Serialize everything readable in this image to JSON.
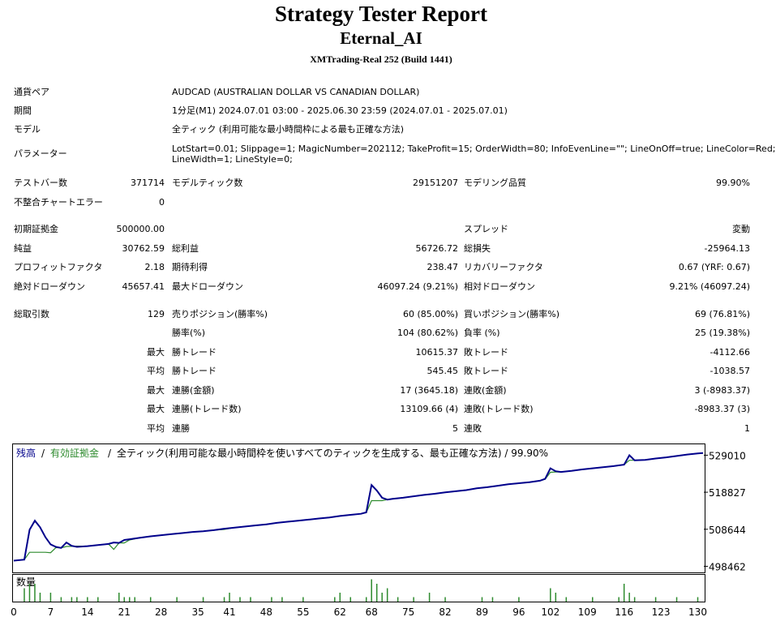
{
  "report": {
    "title": "Strategy Tester Report",
    "expert": "Eternal_AI",
    "server": "XMTrading-Real 252 (Build 1441)"
  },
  "settings": [
    {
      "label": "通貨ペア",
      "value": "AUDCAD (AUSTRALIAN DOLLAR VS CANADIAN DOLLAR)"
    },
    {
      "label": "期間",
      "value": "1分足(M1) 2024.07.01 03:00 - 2025.06.30 23:59 (2024.07.01 - 2025.07.01)"
    },
    {
      "label": "モデル",
      "value": "全ティック (利用可能な最小時間枠による最も正確な方法)"
    },
    {
      "label": "パラメーター",
      "value": "LotStart=0.01; Slippage=1; MagicNumber=202112; TakeProfit=15; OrderWidth=80; InfoEvenLine=\"\"; LineOnOff=true; LineColor=Red;",
      "value2": "LineWidth=1; LineStyle=0;"
    }
  ],
  "stats": {
    "bars_label": "テストバー数",
    "bars": "371714",
    "ticks_label": "モデルティック数",
    "ticks": "29151207",
    "quality_label": "モデリング品質",
    "quality": "99.90%",
    "mismatch_label": "不整合チャートエラー",
    "mismatch": "0",
    "deposit_label": "初期証拠金",
    "deposit": "500000.00",
    "spread_label": "スプレッド",
    "spread": "変動",
    "net_label": "純益",
    "net": "30762.59",
    "gross_profit_label": "総利益",
    "gross_profit": "56726.72",
    "gross_loss_label": "総損失",
    "gross_loss": "-25964.13",
    "pf_label": "プロフィットファクタ",
    "pf": "2.18",
    "expected_label": "期待利得",
    "expected": "238.47",
    "recovery_label": "リカバリーファクタ",
    "recovery": "0.67 (YRF: 0.67)",
    "abs_dd_label": "絶対ドローダウン",
    "abs_dd": "45657.41",
    "max_dd_label": "最大ドローダウン",
    "max_dd": "46097.24 (9.21%)",
    "rel_dd_label": "相対ドローダウン",
    "rel_dd": "9.21% (46097.24)",
    "trades_label": "総取引数",
    "trades": "129",
    "short_label": "売りポジション(勝率%)",
    "short": "60 (85.00%)",
    "long_label": "買いポジション(勝率%)",
    "long": "69 (76.81%)",
    "win_rate_label": "勝率(%)",
    "win_rate": "104 (80.62%)",
    "loss_rate_label": "負率 (%)",
    "loss_rate": "25 (19.38%)"
  },
  "details": [
    {
      "prefix": "最大",
      "wlabel": "勝トレード",
      "wvalue": "10615.37",
      "llabel": "敗トレード",
      "lvalue": "-4112.66"
    },
    {
      "prefix": "平均",
      "wlabel": "勝トレード",
      "wvalue": "545.45",
      "llabel": "敗トレード",
      "lvalue": "-1038.57"
    },
    {
      "prefix": "最大",
      "wlabel": "連勝(金額)",
      "wvalue": "17 (3645.18)",
      "llabel": "連敗(金額)",
      "lvalue": "3 (-8983.37)"
    },
    {
      "prefix": "最大",
      "wlabel": "連勝(トレード数)",
      "wvalue": "13109.66 (4)",
      "llabel": "連敗(トレード数)",
      "lvalue": "-8983.37 (3)"
    },
    {
      "prefix": "平均",
      "wlabel": "連勝",
      "wvalue": "5",
      "llabel": "連敗",
      "lvalue": "1"
    }
  ],
  "chart_data": {
    "type": "line",
    "legend": {
      "balance": "残高",
      "equity": "有効証拠金",
      "sep": "/",
      "description": "全ティック(利用可能な最小時間枠を使いすべてのティックを生成する、最も正確な方法) / 99.90%"
    },
    "volume_label": "数量",
    "colors": {
      "balance": "#00008b",
      "equity": "#2e8b2e",
      "volume": "#2e8b2e"
    },
    "ylim": [
      497000,
      532000
    ],
    "yticks": [
      529010,
      518827,
      508644,
      498462
    ],
    "xlim": [
      0,
      131
    ],
    "xticks": [
      0,
      7,
      14,
      21,
      28,
      35,
      41,
      48,
      55,
      62,
      68,
      75,
      82,
      89,
      96,
      102,
      109,
      116,
      123,
      130
    ],
    "series": [
      {
        "name": "残高",
        "x": [
          0,
          2,
          3,
          4,
          5,
          6,
          7,
          8,
          9,
          10,
          11,
          12,
          14,
          16,
          18,
          19,
          20,
          21,
          22,
          24,
          26,
          28,
          30,
          32,
          34,
          36,
          38,
          40,
          42,
          44,
          46,
          48,
          50,
          52,
          54,
          56,
          58,
          60,
          62,
          64,
          66,
          67,
          68,
          69,
          70,
          71,
          72,
          74,
          76,
          78,
          80,
          82,
          84,
          86,
          88,
          90,
          92,
          94,
          96,
          98,
          100,
          101,
          102,
          103,
          104,
          106,
          108,
          110,
          112,
          114,
          116,
          117,
          118,
          120,
          122,
          124,
          126,
          128,
          130,
          131
        ],
        "y": [
          500000,
          500300,
          508500,
          511000,
          509200,
          506500,
          504500,
          503800,
          503500,
          505000,
          504100,
          503800,
          504000,
          504300,
          504600,
          505000,
          504900,
          505700,
          505900,
          506300,
          506700,
          507000,
          507300,
          507600,
          507900,
          508100,
          508400,
          508800,
          509100,
          509400,
          509700,
          510000,
          510400,
          510700,
          511000,
          511300,
          511600,
          511900,
          512300,
          512600,
          512900,
          513300,
          520800,
          519300,
          517300,
          516800,
          517000,
          517300,
          517700,
          518100,
          518400,
          518800,
          519100,
          519400,
          519900,
          520200,
          520600,
          521000,
          521300,
          521600,
          522000,
          522500,
          525400,
          524600,
          524400,
          524700,
          525100,
          525400,
          525700,
          526000,
          526400,
          529000,
          527600,
          527700,
          528100,
          528400,
          528800,
          529200,
          529500,
          529600
        ]
      },
      {
        "name": "有効証拠金",
        "x": [
          0,
          2,
          3,
          4,
          6,
          7,
          8,
          9,
          10,
          12,
          14,
          16,
          18,
          19,
          20,
          21,
          22,
          24,
          26,
          28,
          30,
          32,
          34,
          36,
          38,
          40,
          42,
          44,
          46,
          48,
          50,
          52,
          54,
          56,
          58,
          60,
          62,
          64,
          66,
          67,
          68,
          69,
          70,
          71,
          72,
          74,
          76,
          78,
          80,
          82,
          84,
          86,
          88,
          90,
          92,
          94,
          96,
          98,
          100,
          101,
          102,
          103,
          104,
          106,
          108,
          110,
          112,
          114,
          116,
          117,
          118,
          120,
          122,
          124,
          126,
          128,
          130,
          131
        ],
        "y": [
          500000,
          500300,
          502300,
          502300,
          502300,
          502200,
          503600,
          503500,
          503900,
          504000,
          504000,
          504300,
          504600,
          503100,
          504900,
          504900,
          505700,
          506300,
          506700,
          507000,
          507300,
          507600,
          507900,
          508100,
          508400,
          508600,
          509100,
          509400,
          509700,
          510000,
          510400,
          510700,
          511000,
          511300,
          511600,
          511900,
          512300,
          512600,
          512900,
          513200,
          516500,
          516500,
          516500,
          516800,
          517000,
          517300,
          517700,
          518100,
          518400,
          518800,
          519100,
          519400,
          519900,
          520200,
          520600,
          521000,
          521300,
          521600,
          522000,
          522400,
          524300,
          524400,
          524400,
          524700,
          525100,
          525400,
          525700,
          526000,
          526400,
          527600,
          527600,
          527700,
          528100,
          528400,
          528800,
          529200,
          529500,
          529600
        ]
      }
    ],
    "volume": {
      "x": [
        2,
        3,
        4,
        5,
        7,
        9,
        11,
        12,
        14,
        16,
        20,
        21,
        22,
        23,
        26,
        31,
        36,
        40,
        41,
        43,
        45,
        49,
        51,
        55,
        61,
        62,
        64,
        67,
        68,
        69,
        70,
        71,
        73,
        76,
        79,
        82,
        89,
        91,
        96,
        102,
        103,
        105,
        110,
        115,
        116,
        117,
        118,
        122,
        126,
        130
      ],
      "v": [
        3,
        4,
        4,
        2,
        2,
        1,
        1,
        1,
        1,
        1,
        2,
        1,
        1,
        1,
        1,
        1,
        1,
        1,
        2,
        1,
        1,
        1,
        1,
        1,
        1,
        2,
        1,
        1,
        5,
        4,
        2,
        3,
        1,
        1,
        2,
        1,
        1,
        1,
        1,
        3,
        2,
        1,
        1,
        1,
        4,
        2,
        1,
        1,
        1,
        1
      ]
    }
  }
}
